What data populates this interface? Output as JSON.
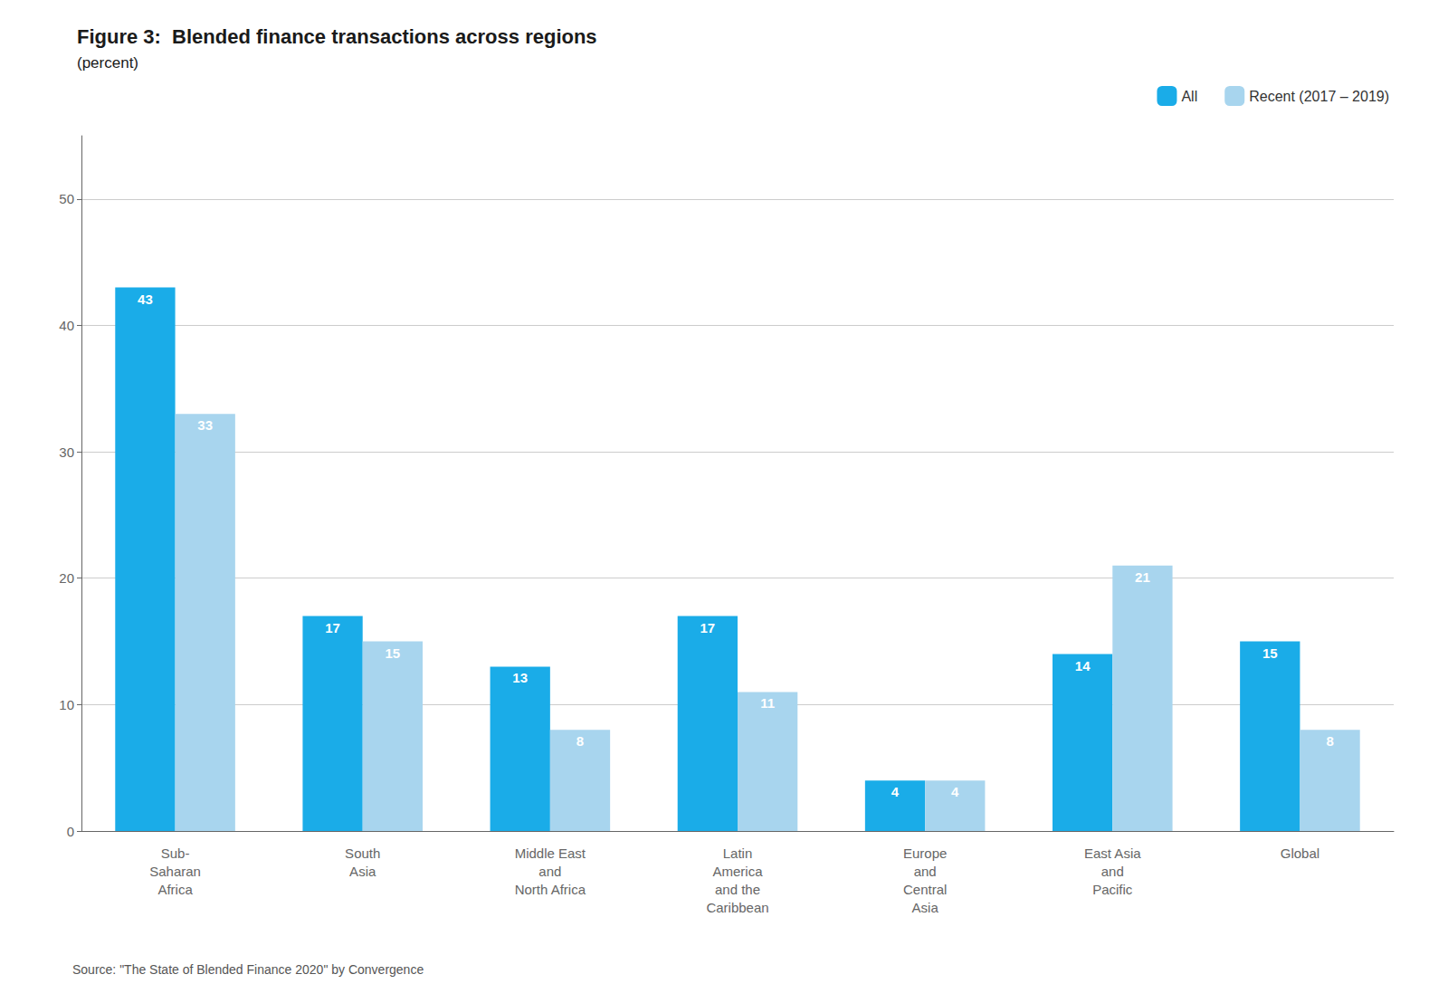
{
  "chart_data": {
    "type": "bar",
    "title": "Figure 3:  Blended finance transactions across regions",
    "subtitle": "(percent)",
    "categories": [
      "Sub-\nSaharan\nAfrica",
      "South\nAsia",
      "Middle East\nand\nNorth Africa",
      "Latin\nAmerica\nand the\nCaribbean",
      "Europe\nand\nCentral\nAsia",
      "East Asia\nand\nPacific",
      "Global"
    ],
    "series": [
      {
        "name": "All",
        "color": "#1AACE8",
        "values": [
          43,
          17,
          13,
          17,
          4,
          14,
          15
        ]
      },
      {
        "name": "Recent (2017 – 2019)",
        "color": "#A8D5EE",
        "values": [
          33,
          15,
          8,
          11,
          4,
          21,
          8
        ]
      }
    ],
    "ylim": [
      0,
      55
    ],
    "yticks": [
      0,
      10,
      20,
      30,
      40,
      50
    ],
    "grid": true,
    "legend": "upper right",
    "data_labels": true,
    "source": "Source: \"The State of Blended Finance 2020\" by Convergence"
  }
}
